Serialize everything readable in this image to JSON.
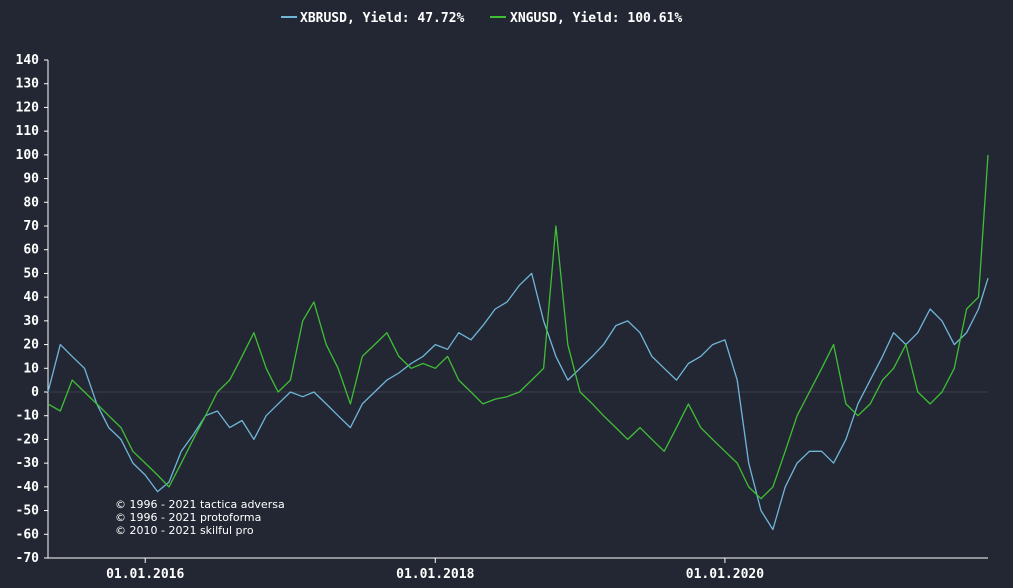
{
  "chart_data": {
    "type": "line",
    "title": "",
    "xlabel": "",
    "ylabel": "",
    "ylim": [
      -70,
      140
    ],
    "yticks": [
      -70,
      -60,
      -50,
      -40,
      -30,
      -20,
      -10,
      0,
      10,
      20,
      30,
      40,
      50,
      60,
      70,
      80,
      90,
      100,
      110,
      120,
      130,
      140
    ],
    "xlim": [
      "2015-05-01",
      "2021-10-25"
    ],
    "xticks": [
      "2016-01-01",
      "2018-01-01",
      "2020-01-01"
    ],
    "xtick_labels": [
      "01.01.2016",
      "01.01.2018",
      "01.01.2020"
    ],
    "zero_line": true,
    "grid": false,
    "legend": "top-center",
    "series": [
      {
        "name": "XBRUSD, Yield: 47.72%",
        "color": "#6fb6d8",
        "x": [
          "2015-05-01",
          "2015-06-01",
          "2015-07-01",
          "2015-08-01",
          "2015-09-01",
          "2015-10-01",
          "2015-11-01",
          "2015-12-01",
          "2016-01-01",
          "2016-02-01",
          "2016-03-01",
          "2016-04-01",
          "2016-05-01",
          "2016-06-01",
          "2016-07-01",
          "2016-08-01",
          "2016-09-01",
          "2016-10-01",
          "2016-11-01",
          "2016-12-01",
          "2017-01-01",
          "2017-02-01",
          "2017-03-01",
          "2017-04-01",
          "2017-05-01",
          "2017-06-01",
          "2017-07-01",
          "2017-08-01",
          "2017-09-01",
          "2017-10-01",
          "2017-11-01",
          "2017-12-01",
          "2018-01-01",
          "2018-02-01",
          "2018-03-01",
          "2018-04-01",
          "2018-05-01",
          "2018-06-01",
          "2018-07-01",
          "2018-08-01",
          "2018-09-01",
          "2018-10-01",
          "2018-11-01",
          "2018-12-01",
          "2019-01-01",
          "2019-02-01",
          "2019-03-01",
          "2019-04-01",
          "2019-05-01",
          "2019-06-01",
          "2019-07-01",
          "2019-08-01",
          "2019-09-01",
          "2019-10-01",
          "2019-11-01",
          "2019-12-01",
          "2020-01-01",
          "2020-02-01",
          "2020-03-01",
          "2020-04-01",
          "2020-05-01",
          "2020-06-01",
          "2020-07-01",
          "2020-08-01",
          "2020-09-01",
          "2020-10-01",
          "2020-11-01",
          "2020-12-01",
          "2021-01-01",
          "2021-02-01",
          "2021-03-01",
          "2021-04-01",
          "2021-05-01",
          "2021-06-01",
          "2021-07-01",
          "2021-08-01",
          "2021-09-01",
          "2021-10-01",
          "2021-10-25"
        ],
        "values": [
          0,
          20,
          15,
          10,
          -5,
          -15,
          -20,
          -30,
          -35,
          -42,
          -38,
          -25,
          -18,
          -10,
          -8,
          -15,
          -12,
          -20,
          -10,
          -5,
          0,
          -2,
          0,
          -5,
          -10,
          -15,
          -5,
          0,
          5,
          8,
          12,
          15,
          20,
          18,
          25,
          22,
          28,
          35,
          38,
          45,
          50,
          30,
          15,
          5,
          10,
          15,
          20,
          28,
          30,
          25,
          15,
          10,
          5,
          12,
          15,
          20,
          22,
          5,
          -30,
          -50,
          -58,
          -40,
          -30,
          -25,
          -25,
          -30,
          -20,
          -5,
          5,
          15,
          25,
          20,
          25,
          35,
          30,
          20,
          25,
          35,
          48
        ]
      },
      {
        "name": "XNGUSD, Yield: 100.61%",
        "color": "#3fbe36",
        "x": [
          "2015-05-01",
          "2015-06-01",
          "2015-07-01",
          "2015-08-01",
          "2015-09-01",
          "2015-10-01",
          "2015-11-01",
          "2015-12-01",
          "2016-01-01",
          "2016-02-01",
          "2016-03-01",
          "2016-04-01",
          "2016-05-01",
          "2016-06-01",
          "2016-07-01",
          "2016-08-01",
          "2016-09-01",
          "2016-10-01",
          "2016-11-01",
          "2016-12-01",
          "2017-01-01",
          "2017-02-01",
          "2017-03-01",
          "2017-04-01",
          "2017-05-01",
          "2017-06-01",
          "2017-07-01",
          "2017-08-01",
          "2017-09-01",
          "2017-10-01",
          "2017-11-01",
          "2017-12-01",
          "2018-01-01",
          "2018-02-01",
          "2018-03-01",
          "2018-04-01",
          "2018-05-01",
          "2018-06-01",
          "2018-07-01",
          "2018-08-01",
          "2018-09-01",
          "2018-10-01",
          "2018-11-01",
          "2018-12-01",
          "2019-01-01",
          "2019-02-01",
          "2019-03-01",
          "2019-04-01",
          "2019-05-01",
          "2019-06-01",
          "2019-07-01",
          "2019-08-01",
          "2019-09-01",
          "2019-10-01",
          "2019-11-01",
          "2019-12-01",
          "2020-01-01",
          "2020-02-01",
          "2020-03-01",
          "2020-04-01",
          "2020-05-01",
          "2020-06-01",
          "2020-07-01",
          "2020-08-01",
          "2020-09-01",
          "2020-10-01",
          "2020-11-01",
          "2020-12-01",
          "2021-01-01",
          "2021-02-01",
          "2021-03-01",
          "2021-04-01",
          "2021-05-01",
          "2021-06-01",
          "2021-07-01",
          "2021-08-01",
          "2021-09-01",
          "2021-10-01",
          "2021-10-25"
        ],
        "values": [
          -5,
          -8,
          5,
          0,
          -5,
          -10,
          -15,
          -25,
          -30,
          -35,
          -40,
          -30,
          -20,
          -10,
          0,
          5,
          15,
          25,
          10,
          0,
          5,
          30,
          38,
          20,
          10,
          -5,
          15,
          20,
          25,
          15,
          10,
          12,
          10,
          15,
          5,
          0,
          -5,
          -3,
          -2,
          0,
          5,
          10,
          70,
          20,
          0,
          -5,
          -10,
          -15,
          -20,
          -15,
          -20,
          -25,
          -15,
          -5,
          -15,
          -20,
          -25,
          -30,
          -40,
          -45,
          -40,
          -25,
          -10,
          0,
          10,
          20,
          -5,
          -10,
          -5,
          5,
          10,
          20,
          0,
          -5,
          0,
          10,
          35,
          40,
          100
        ]
      }
    ],
    "watermark": [
      "© 1996 - 2021 tactica adversa",
      "© 1996 - 2021 protoforma",
      "© 2010 - 2021 skilful pro"
    ]
  }
}
